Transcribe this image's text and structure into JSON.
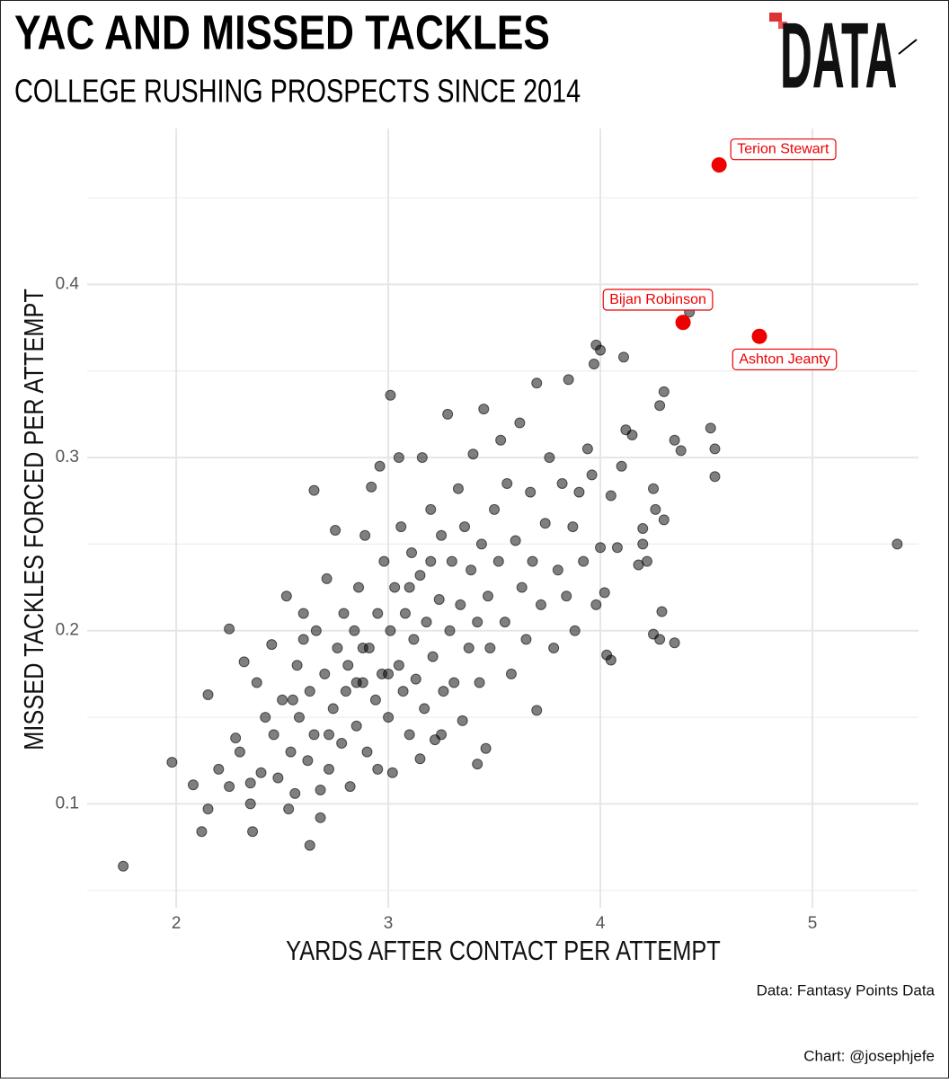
{
  "chart_data": {
    "type": "scatter",
    "title": "YAC AND MISSED TACKLES",
    "subtitle": "COLLEGE RUSHING PROSPECTS SINCE 2014",
    "logo_text": "DATA",
    "x_label": "YARDS AFTER CONTACT PER ATTEMPT",
    "y_label": "MISSED TACKLES FORCED PER ATTEMPT",
    "source": "Data: Fantasy Points Data",
    "credit": "Chart: @josephjefe",
    "xlim": [
      1.58,
      5.5
    ],
    "ylim": [
      0.04,
      0.49
    ],
    "xticks": [
      2,
      3,
      4,
      5
    ],
    "yticks": [
      0.1,
      0.2,
      0.3,
      0.4
    ],
    "y_minor_grid": [
      0.05,
      0.15,
      0.25,
      0.35,
      0.45
    ],
    "grid": true,
    "color": "#000000",
    "highlight_color": "#ee0000",
    "x": [
      1.75,
      1.98,
      2.08,
      2.12,
      2.15,
      2.15,
      2.25,
      2.63,
      2.65,
      3.01,
      4.11,
      3.98,
      4.0,
      3.97,
      4.42,
      4.52,
      4.54,
      4.54,
      4.3,
      4.28,
      4.35,
      4.38,
      4.35,
      4.25,
      4.28,
      4.29,
      4.05,
      4.03,
      4.3,
      4.2,
      3.7,
      3.42,
      3.46,
      2.68,
      2.36,
      2.35,
      2.53,
      5.4,
      2.2,
      2.25,
      2.28,
      2.3,
      2.32,
      2.35,
      2.38,
      2.4,
      2.42,
      2.45,
      2.46,
      2.48,
      2.5,
      2.52,
      2.54,
      2.56,
      2.57,
      2.58,
      2.6,
      2.62,
      2.63,
      2.65,
      2.66,
      2.68,
      2.7,
      2.71,
      2.72,
      2.74,
      2.75,
      2.76,
      2.78,
      2.79,
      2.8,
      2.81,
      2.82,
      2.84,
      2.85,
      2.86,
      2.88,
      2.89,
      2.9,
      2.91,
      2.92,
      2.94,
      2.95,
      2.96,
      2.97,
      2.98,
      3.0,
      3.01,
      3.02,
      3.03,
      3.05,
      3.06,
      3.07,
      3.08,
      3.1,
      3.11,
      3.12,
      3.13,
      3.15,
      3.16,
      3.17,
      3.18,
      3.2,
      3.21,
      3.22,
      3.24,
      3.25,
      3.26,
      3.28,
      3.29,
      3.3,
      3.31,
      3.33,
      3.34,
      3.35,
      3.36,
      3.38,
      3.39,
      3.4,
      3.42,
      3.43,
      3.44,
      3.45,
      3.47,
      3.48,
      3.5,
      3.52,
      3.53,
      3.55,
      3.56,
      3.58,
      3.6,
      3.62,
      3.63,
      3.65,
      3.67,
      3.68,
      3.7,
      3.72,
      3.74,
      3.76,
      3.78,
      3.8,
      3.82,
      3.84,
      3.85,
      3.87,
      3.88,
      3.9,
      3.92,
      3.94,
      3.96,
      3.98,
      4.0,
      4.02,
      4.05,
      4.08,
      4.1,
      4.12,
      4.15,
      4.18,
      4.2,
      4.22,
      4.25,
      4.26,
      3.15,
      3.25,
      2.95,
      3.05,
      2.55,
      2.6,
      2.72,
      2.85,
      2.88,
      3.0,
      3.1,
      3.2
    ],
    "y": [
      0.064,
      0.124,
      0.111,
      0.084,
      0.097,
      0.163,
      0.201,
      0.076,
      0.281,
      0.336,
      0.358,
      0.365,
      0.362,
      0.354,
      0.384,
      0.317,
      0.305,
      0.289,
      0.338,
      0.33,
      0.31,
      0.304,
      0.193,
      0.198,
      0.195,
      0.211,
      0.183,
      0.186,
      0.264,
      0.259,
      0.154,
      0.123,
      0.132,
      0.092,
      0.084,
      0.1,
      0.097,
      0.25,
      0.12,
      0.11,
      0.138,
      0.13,
      0.182,
      0.112,
      0.17,
      0.118,
      0.15,
      0.192,
      0.14,
      0.115,
      0.16,
      0.22,
      0.13,
      0.106,
      0.18,
      0.15,
      0.195,
      0.125,
      0.165,
      0.14,
      0.2,
      0.108,
      0.175,
      0.23,
      0.12,
      0.155,
      0.258,
      0.19,
      0.135,
      0.21,
      0.165,
      0.18,
      0.11,
      0.2,
      0.145,
      0.225,
      0.17,
      0.255,
      0.13,
      0.19,
      0.283,
      0.16,
      0.21,
      0.295,
      0.175,
      0.24,
      0.15,
      0.2,
      0.118,
      0.225,
      0.18,
      0.26,
      0.165,
      0.21,
      0.14,
      0.245,
      0.195,
      0.172,
      0.232,
      0.3,
      0.155,
      0.205,
      0.27,
      0.185,
      0.137,
      0.218,
      0.255,
      0.165,
      0.325,
      0.2,
      0.24,
      0.17,
      0.282,
      0.215,
      0.148,
      0.26,
      0.19,
      0.235,
      0.302,
      0.205,
      0.17,
      0.25,
      0.328,
      0.22,
      0.19,
      0.27,
      0.24,
      0.31,
      0.205,
      0.285,
      0.175,
      0.252,
      0.32,
      0.225,
      0.195,
      0.28,
      0.24,
      0.343,
      0.215,
      0.262,
      0.3,
      0.19,
      0.235,
      0.285,
      0.22,
      0.345,
      0.26,
      0.2,
      0.28,
      0.24,
      0.305,
      0.29,
      0.215,
      0.248,
      0.222,
      0.278,
      0.248,
      0.295,
      0.316,
      0.313,
      0.238,
      0.25,
      0.24,
      0.282,
      0.27,
      0.126,
      0.14,
      0.12,
      0.3,
      0.16,
      0.21,
      0.14,
      0.17,
      0.19,
      0.175,
      0.225,
      0.24
    ],
    "highlights": [
      {
        "label": "Terion Stewart",
        "x": 4.56,
        "y": 0.469
      },
      {
        "label": "Bijan Robinson",
        "x": 4.39,
        "y": 0.378
      },
      {
        "label": "Ashton Jeanty",
        "x": 4.75,
        "y": 0.37
      }
    ]
  }
}
